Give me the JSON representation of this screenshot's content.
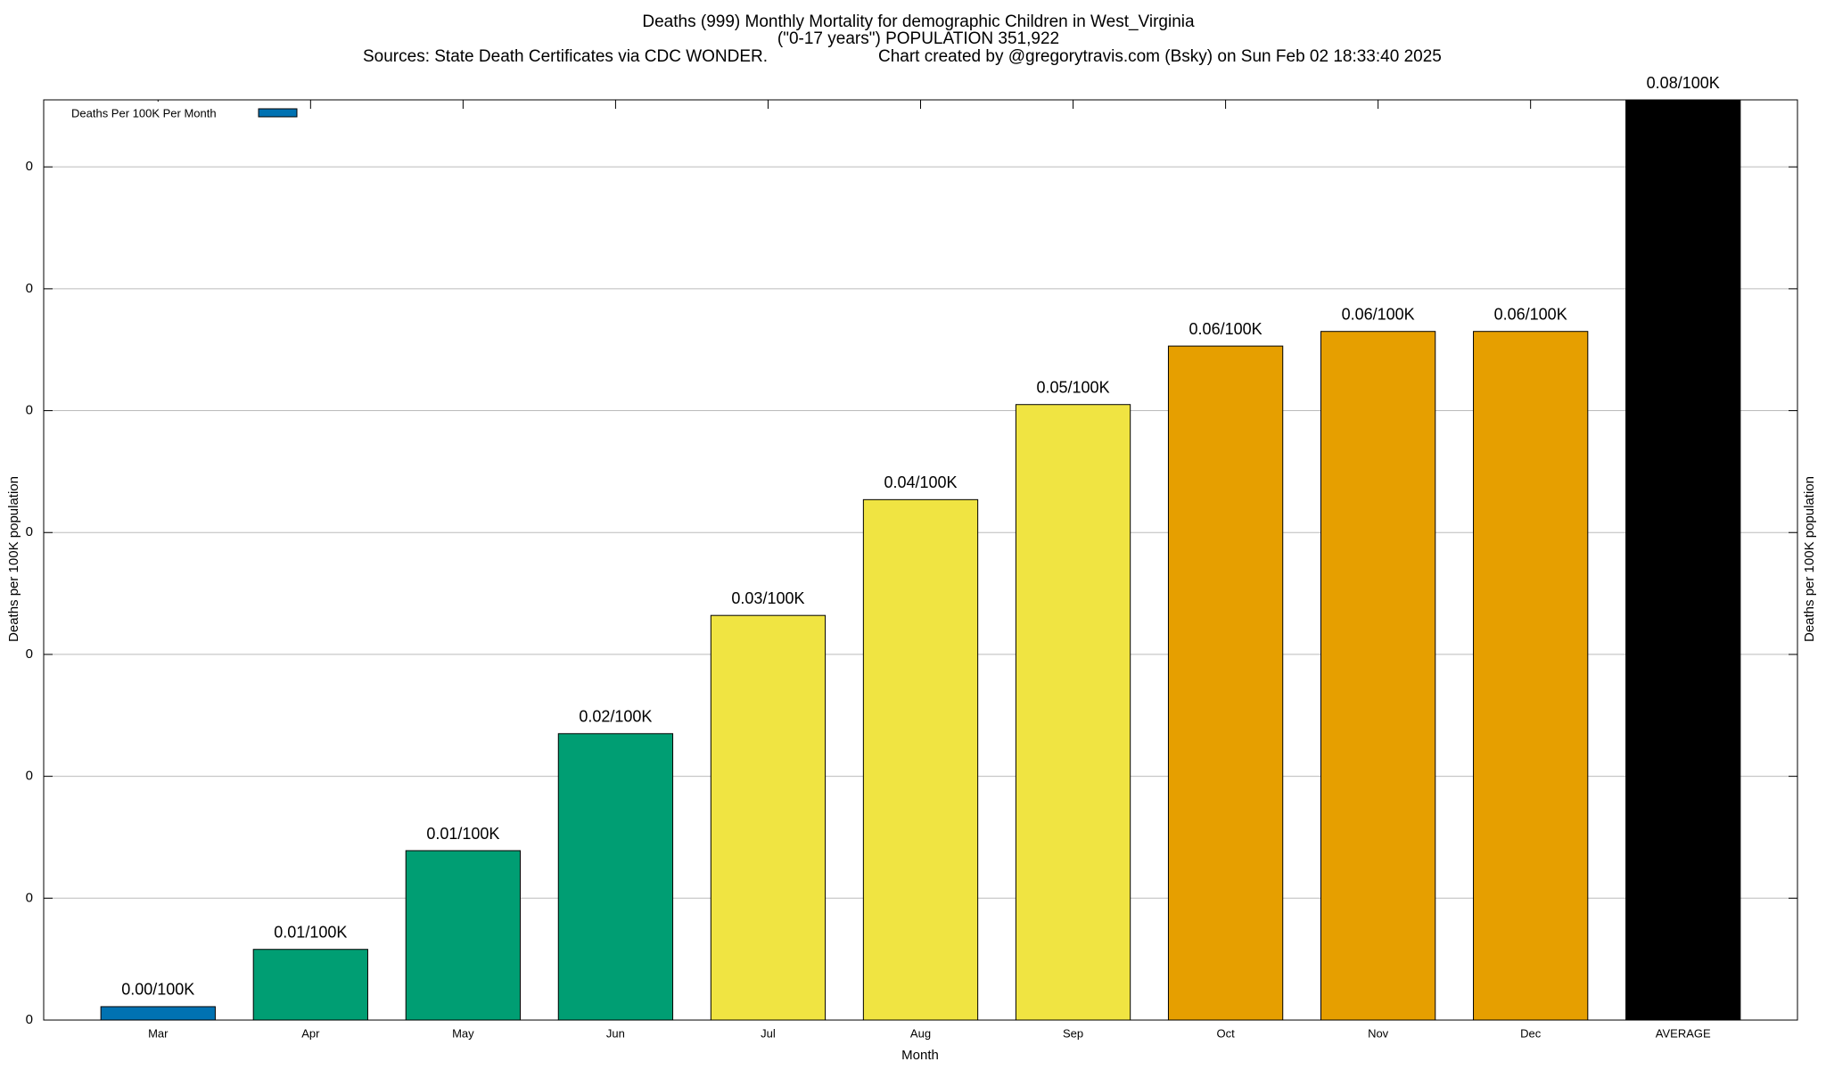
{
  "chart_data": {
    "type": "bar",
    "title": "Deaths (999) Monthly Mortality for demographic Children in West_Virginia",
    "subtitle": "(\"0-17 years\") POPULATION 351,922",
    "source": "Sources: State Death Certificates via CDC WONDER.",
    "credit": "Chart created by @gregorytravis.com (Bsky) on Sun Feb 02 18:33:40 2025",
    "xlabel": "Month",
    "ylabel": "Deaths per 100K population",
    "legend": "Deaths Per 100K Per Month",
    "legend_color": "#0072b2",
    "legend_position": "top-left",
    "categories": [
      "Mar",
      "Apr",
      "May",
      "Jun",
      "Jul",
      "Aug",
      "Sep",
      "Oct",
      "Nov",
      "Dec",
      "AVERAGE"
    ],
    "values": [
      0.0011,
      0.0058,
      0.0139,
      0.0235,
      0.0332,
      0.0427,
      0.0505,
      0.0553,
      0.0565,
      0.0565,
      0.0755
    ],
    "value_labels": [
      "0.00/100K",
      "0.01/100K",
      "0.01/100K",
      "0.02/100K",
      "0.03/100K",
      "0.04/100K",
      "0.05/100K",
      "0.06/100K",
      "0.06/100K",
      "0.06/100K",
      "0.08/100K"
    ],
    "colors": [
      "#0072b2",
      "#009e73",
      "#009e73",
      "#009e73",
      "#f0e442",
      "#f0e442",
      "#f0e442",
      "#e69f00",
      "#e69f00",
      "#e69f00",
      "#000000"
    ],
    "ylim": [
      0,
      0.0755
    ],
    "yticks": [
      0,
      {
        "value": 0.01,
        "label": "0"
      },
      {
        "value": 0.02,
        "label": "0"
      },
      {
        "value": 0.03,
        "label": "0"
      },
      {
        "value": 0.04,
        "label": "0"
      },
      {
        "value": 0.05,
        "label": "0"
      },
      {
        "value": 0.06,
        "label": "0"
      },
      {
        "value": 0.07,
        "label": "0"
      }
    ],
    "grid": true
  }
}
